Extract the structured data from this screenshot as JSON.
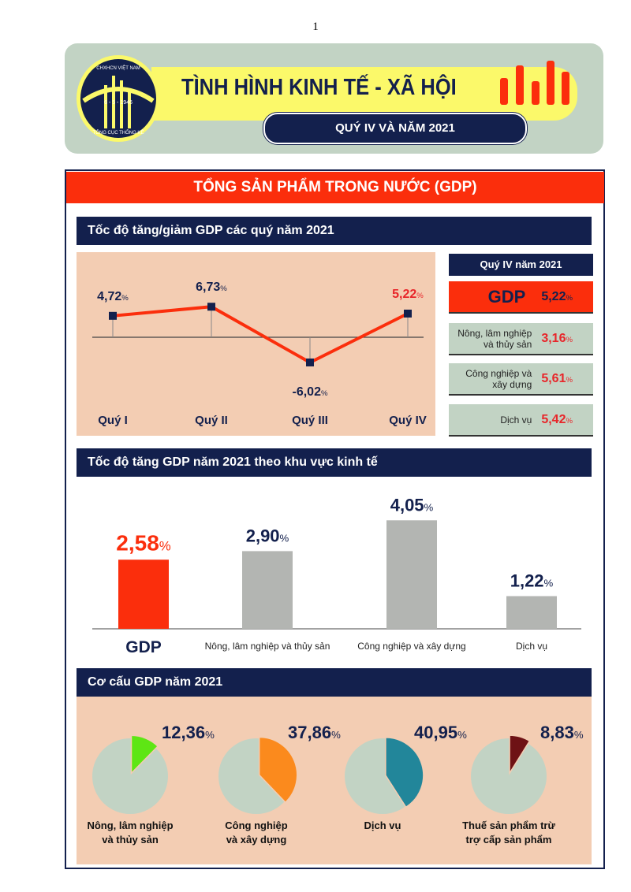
{
  "page_number": "1",
  "header": {
    "logo_text": [
      "CHXHCN VIỆT NAM",
      "6 - 5 - 1946",
      "TỔNG CỤC THỐNG KÊ"
    ],
    "title": "TÌNH HÌNH KINH TẾ - XÃ HỘI",
    "subtitle": "QUÝ IV VÀ NĂM 2021"
  },
  "banner": "TỔNG SẢN PHẨM TRONG NƯỚC (GDP)",
  "colors": {
    "navy": "#13204d",
    "red": "#fb2e0c",
    "peach": "#f3cdb3",
    "gray": "#b3b5b2",
    "pie_bg": "#c2d3c4"
  },
  "percent_sign": "%",
  "kpi": {
    "title": "Quý IV năm 2021",
    "gdp_label": "GDP",
    "gdp_value": "5,22",
    "items": [
      {
        "label_lines": [
          "Nông, lâm nghiệp",
          "và thủy sản"
        ],
        "value": "3,16"
      },
      {
        "label_lines": [
          "Công nghiệp và",
          "xây dựng"
        ],
        "value": "5,61"
      },
      {
        "label_lines": [
          "Dịch vụ"
        ],
        "value": "5,42"
      }
    ]
  },
  "chart_data": [
    {
      "type": "line",
      "title": "Tốc độ tăng/giảm GDP các quý năm 2021",
      "categories": [
        "Quý I",
        "Quý II",
        "Quý III",
        "Quý IV"
      ],
      "values": [
        4.72,
        6.73,
        -6.02,
        5.22
      ],
      "labels": [
        "4,72",
        "6,73",
        "-6,02",
        "5,22"
      ],
      "unit": "%",
      "highlight_last": true
    },
    {
      "type": "bar",
      "title": "Tốc độ tăng GDP năm 2021 theo khu vực kinh tế",
      "categories": [
        "GDP",
        "Nông, lâm nghiệp và thủy sản",
        "Công nghiệp và xây dựng",
        "Dịch vụ"
      ],
      "values": [
        2.58,
        2.9,
        4.05,
        1.22
      ],
      "labels": [
        "2,58",
        "2,90",
        "4,05",
        "1,22"
      ],
      "unit": "%",
      "bar_colors": [
        "#fb2e0c",
        "#b3b5b2",
        "#b3b5b2",
        "#b3b5b2"
      ]
    },
    {
      "type": "pie",
      "title": "Cơ cấu GDP năm 2021",
      "series": [
        {
          "label_lines": [
            "Nông, lâm nghiệp",
            "và thủy sản"
          ],
          "value": 12.36,
          "label": "12,36",
          "color": "#5ee614"
        },
        {
          "label_lines": [
            "Công nghiệp",
            "và xây dựng"
          ],
          "value": 37.86,
          "label": "37,86",
          "color": "#fb8a1d"
        },
        {
          "label_lines": [
            "Dịch vụ"
          ],
          "value": 40.95,
          "label": "40,95",
          "color": "#22869a"
        },
        {
          "label_lines": [
            "Thuế sản phẩm trừ",
            "trợ cấp sản phẩm"
          ],
          "value": 8.83,
          "label": "8,83",
          "color": "#6e1215"
        }
      ],
      "unit": "%"
    }
  ]
}
